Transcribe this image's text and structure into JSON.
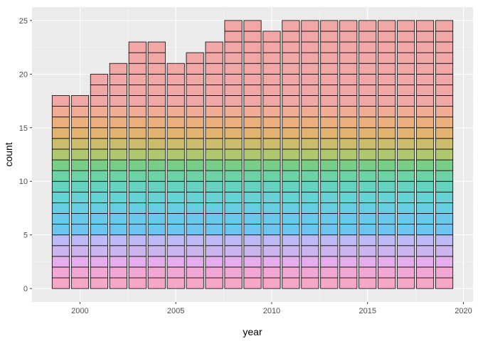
{
  "chart_data": {
    "type": "bar",
    "style": "stacked unit blocks (one outlined cell per count), fill color varies by stack level",
    "xlabel": "year",
    "ylabel": "count",
    "x": [
      1999,
      2000,
      2001,
      2002,
      2003,
      2004,
      2005,
      2006,
      2007,
      2008,
      2009,
      2010,
      2011,
      2012,
      2013,
      2014,
      2015,
      2016,
      2017,
      2018,
      2019
    ],
    "values": [
      18,
      18,
      20,
      21,
      23,
      23,
      21,
      22,
      23,
      25,
      25,
      24,
      25,
      25,
      25,
      25,
      25,
      25,
      25,
      25,
      25
    ],
    "xlim": [
      1997.5,
      2020.5
    ],
    "ylim": [
      -1.25,
      26.25
    ],
    "x_ticks": [
      2000,
      2005,
      2010,
      2015,
      2020
    ],
    "y_ticks": [
      0,
      5,
      10,
      15,
      20,
      25
    ],
    "grid": true,
    "legend": "none",
    "colors": {
      "panel_background": "#ebebeb",
      "grid_major": "#ffffff",
      "bar_outline": "#000000",
      "level_palette": [
        "#f7a0c4",
        "#f4a0d2",
        "#e4a6ec",
        "#c9aef0",
        "#b9b5f6",
        "#5fc0ee",
        "#5cc4ea",
        "#58cbdf",
        "#56cfd0",
        "#56d0bb",
        "#5fcf9e",
        "#6ccb7c",
        "#a8c462",
        "#c8b85f",
        "#e1ad64",
        "#ebaa72",
        "#f3a58d",
        "#f3a0a0"
      ]
    }
  }
}
